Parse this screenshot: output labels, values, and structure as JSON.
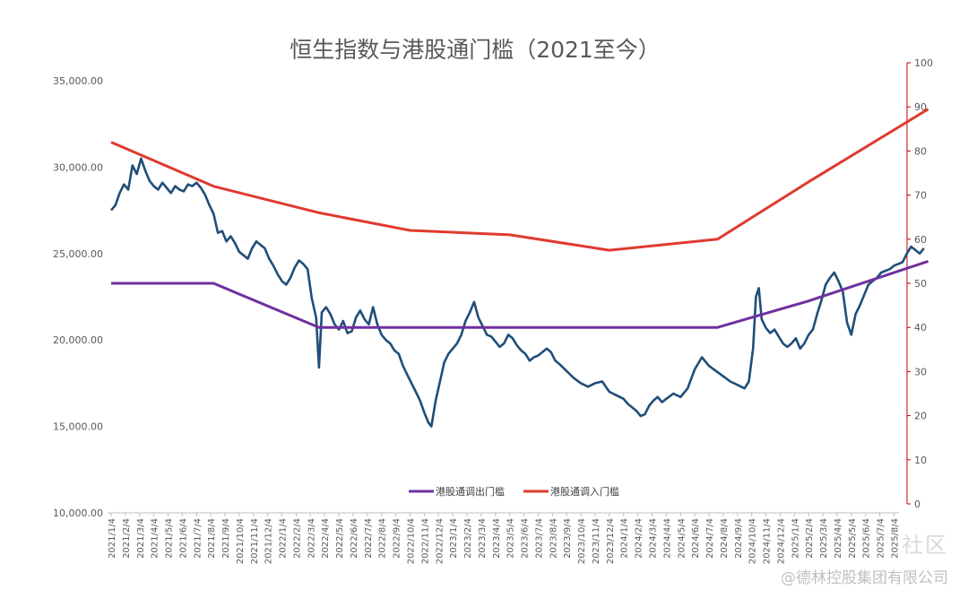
{
  "chart_data": {
    "type": "line",
    "title": "恒生指数与港股通门槛（2021至今）",
    "left_axis": {
      "ylim": [
        10000,
        35000
      ],
      "ticks": [
        "10,000.00",
        "15,000.00",
        "20,000.00",
        "25,000.00",
        "30,000.00",
        "35,000.00"
      ],
      "tick_values": [
        10000,
        15000,
        20000,
        25000,
        30000,
        35000
      ]
    },
    "right_axis": {
      "ylim": [
        0,
        100
      ],
      "ticks": [
        "0",
        "10",
        "20",
        "30",
        "40",
        "50",
        "60",
        "70",
        "80",
        "90",
        "100"
      ],
      "tick_values": [
        0,
        10,
        20,
        30,
        40,
        50,
        60,
        70,
        80,
        90,
        100
      ],
      "color": "#c00000"
    },
    "x_labels": [
      "2021/1/4",
      "2021/2/4",
      "2021/3/4",
      "2021/4/4",
      "2021/5/4",
      "2021/6/4",
      "2021/7/4",
      "2021/8/4",
      "2021/9/4",
      "2021/10/4",
      "2021/11/4",
      "2021/12/4",
      "2022/1/4",
      "2022/2/4",
      "2022/3/4",
      "2022/4/4",
      "2022/5/4",
      "2022/6/4",
      "2022/7/4",
      "2022/8/4",
      "2022/9/4",
      "2022/10/4",
      "2022/11/4",
      "2022/12/4",
      "2023/1/4",
      "2023/2/4",
      "2023/3/4",
      "2023/4/4",
      "2023/5/4",
      "2023/6/4",
      "2023/7/4",
      "2023/8/4",
      "2023/9/4",
      "2023/10/4",
      "2023/11/4",
      "2023/12/4",
      "2024/1/4",
      "2024/2/4",
      "2024/3/4",
      "2024/4/4",
      "2024/5/4",
      "2024/6/4",
      "2024/7/4",
      "2024/8/4",
      "2024/9/4",
      "2024/10/4",
      "2024/11/4",
      "2024/12/4",
      "2025/1/4",
      "2025/2/4",
      "2025/3/4",
      "2025/4/4",
      "2025/5/4",
      "2025/6/4",
      "2025/7/4",
      "2025/8/4"
    ],
    "series": [
      {
        "name": "恒生指数",
        "axis": "left",
        "color": "#1f4e79",
        "points": [
          [
            0,
            27500
          ],
          [
            0.3,
            27800
          ],
          [
            0.6,
            28500
          ],
          [
            0.9,
            29000
          ],
          [
            1.2,
            28700
          ],
          [
            1.5,
            30100
          ],
          [
            1.8,
            29600
          ],
          [
            2.1,
            30500
          ],
          [
            2.4,
            29800
          ],
          [
            2.7,
            29200
          ],
          [
            3.0,
            28900
          ],
          [
            3.3,
            28700
          ],
          [
            3.6,
            29100
          ],
          [
            3.9,
            28800
          ],
          [
            4.2,
            28500
          ],
          [
            4.5,
            28900
          ],
          [
            4.8,
            28700
          ],
          [
            5.1,
            28600
          ],
          [
            5.4,
            29000
          ],
          [
            5.7,
            28900
          ],
          [
            6.0,
            29100
          ],
          [
            6.3,
            28800
          ],
          [
            6.6,
            28400
          ],
          [
            6.9,
            27800
          ],
          [
            7.2,
            27300
          ],
          [
            7.5,
            26200
          ],
          [
            7.8,
            26300
          ],
          [
            8.1,
            25700
          ],
          [
            8.4,
            26000
          ],
          [
            8.7,
            25600
          ],
          [
            9.0,
            25100
          ],
          [
            9.3,
            24900
          ],
          [
            9.6,
            24700
          ],
          [
            9.9,
            25300
          ],
          [
            10.2,
            25700
          ],
          [
            10.5,
            25500
          ],
          [
            10.8,
            25300
          ],
          [
            11.1,
            24700
          ],
          [
            11.4,
            24300
          ],
          [
            11.7,
            23800
          ],
          [
            12.0,
            23400
          ],
          [
            12.3,
            23200
          ],
          [
            12.6,
            23600
          ],
          [
            12.9,
            24200
          ],
          [
            13.2,
            24600
          ],
          [
            13.5,
            24400
          ],
          [
            13.8,
            24100
          ],
          [
            14.1,
            22400
          ],
          [
            14.4,
            21300
          ],
          [
            14.6,
            18400
          ],
          [
            14.8,
            21600
          ],
          [
            15.1,
            21900
          ],
          [
            15.4,
            21500
          ],
          [
            15.7,
            20900
          ],
          [
            16.0,
            20600
          ],
          [
            16.3,
            21100
          ],
          [
            16.6,
            20400
          ],
          [
            16.9,
            20500
          ],
          [
            17.2,
            21300
          ],
          [
            17.5,
            21700
          ],
          [
            17.8,
            21200
          ],
          [
            18.1,
            20900
          ],
          [
            18.4,
            21900
          ],
          [
            18.7,
            20900
          ],
          [
            19.0,
            20300
          ],
          [
            19.3,
            20000
          ],
          [
            19.6,
            19800
          ],
          [
            19.9,
            19400
          ],
          [
            20.2,
            19200
          ],
          [
            20.5,
            18500
          ],
          [
            20.8,
            18000
          ],
          [
            21.1,
            17500
          ],
          [
            21.4,
            17000
          ],
          [
            21.7,
            16500
          ],
          [
            22.0,
            15800
          ],
          [
            22.3,
            15200
          ],
          [
            22.5,
            15000
          ],
          [
            22.8,
            16500
          ],
          [
            23.1,
            17600
          ],
          [
            23.4,
            18700
          ],
          [
            23.7,
            19200
          ],
          [
            24.0,
            19500
          ],
          [
            24.3,
            19800
          ],
          [
            24.6,
            20300
          ],
          [
            24.9,
            21100
          ],
          [
            25.2,
            21600
          ],
          [
            25.5,
            22200
          ],
          [
            25.8,
            21300
          ],
          [
            26.1,
            20800
          ],
          [
            26.4,
            20300
          ],
          [
            26.7,
            20200
          ],
          [
            27.0,
            19900
          ],
          [
            27.3,
            19600
          ],
          [
            27.6,
            19800
          ],
          [
            27.9,
            20300
          ],
          [
            28.2,
            20100
          ],
          [
            28.5,
            19700
          ],
          [
            28.8,
            19400
          ],
          [
            29.1,
            19200
          ],
          [
            29.4,
            18800
          ],
          [
            29.7,
            19000
          ],
          [
            30.0,
            19100
          ],
          [
            30.3,
            19300
          ],
          [
            30.6,
            19500
          ],
          [
            30.9,
            19300
          ],
          [
            31.2,
            18800
          ],
          [
            31.5,
            18600
          ],
          [
            32.0,
            18200
          ],
          [
            32.5,
            17800
          ],
          [
            33.0,
            17500
          ],
          [
            33.5,
            17300
          ],
          [
            34.0,
            17500
          ],
          [
            34.5,
            17600
          ],
          [
            35.0,
            17000
          ],
          [
            35.5,
            16800
          ],
          [
            36.0,
            16600
          ],
          [
            36.3,
            16300
          ],
          [
            36.6,
            16100
          ],
          [
            36.9,
            15900
          ],
          [
            37.2,
            15600
          ],
          [
            37.5,
            15700
          ],
          [
            37.8,
            16200
          ],
          [
            38.1,
            16500
          ],
          [
            38.4,
            16700
          ],
          [
            38.7,
            16400
          ],
          [
            39.0,
            16600
          ],
          [
            39.5,
            16900
          ],
          [
            40.0,
            16700
          ],
          [
            40.5,
            17200
          ],
          [
            41.0,
            18300
          ],
          [
            41.5,
            19000
          ],
          [
            42.0,
            18500
          ],
          [
            42.5,
            18200
          ],
          [
            43.0,
            17900
          ],
          [
            43.5,
            17600
          ],
          [
            44.0,
            17400
          ],
          [
            44.5,
            17200
          ],
          [
            44.8,
            17600
          ],
          [
            45.1,
            19500
          ],
          [
            45.3,
            22500
          ],
          [
            45.5,
            23000
          ],
          [
            45.7,
            21200
          ],
          [
            46.0,
            20700
          ],
          [
            46.3,
            20400
          ],
          [
            46.6,
            20600
          ],
          [
            46.9,
            20200
          ],
          [
            47.2,
            19800
          ],
          [
            47.5,
            19600
          ],
          [
            47.8,
            19800
          ],
          [
            48.1,
            20100
          ],
          [
            48.4,
            19500
          ],
          [
            48.7,
            19800
          ],
          [
            49.0,
            20300
          ],
          [
            49.3,
            20600
          ],
          [
            49.6,
            21500
          ],
          [
            49.9,
            22300
          ],
          [
            50.2,
            23200
          ],
          [
            50.5,
            23600
          ],
          [
            50.8,
            23900
          ],
          [
            51.1,
            23400
          ],
          [
            51.4,
            22800
          ],
          [
            51.7,
            21000
          ],
          [
            52.0,
            20300
          ],
          [
            52.3,
            21500
          ],
          [
            52.6,
            22000
          ],
          [
            52.9,
            22600
          ],
          [
            53.2,
            23200
          ],
          [
            53.5,
            23400
          ],
          [
            53.8,
            23600
          ],
          [
            54.1,
            23900
          ],
          [
            54.4,
            24000
          ],
          [
            54.7,
            24100
          ],
          [
            55.0,
            24300
          ],
          [
            55.3,
            24400
          ],
          [
            55.6,
            24500
          ],
          [
            55.9,
            25000
          ],
          [
            56.2,
            25400
          ],
          [
            56.5,
            25200
          ],
          [
            56.8,
            25000
          ],
          [
            57.1,
            25300
          ]
        ]
      },
      {
        "name": "港股通调出门槛",
        "axis": "right",
        "color": "#7030a0",
        "points": [
          [
            0,
            50
          ],
          [
            7.2,
            50
          ],
          [
            14.6,
            40
          ],
          [
            42.6,
            40
          ],
          [
            49.0,
            46
          ],
          [
            57.4,
            55
          ]
        ]
      },
      {
        "name": "港股通调入门槛",
        "axis": "right",
        "color": "#e03a2f",
        "points": [
          [
            0,
            82
          ],
          [
            7.2,
            72
          ],
          [
            14.6,
            66
          ],
          [
            21.0,
            62
          ],
          [
            28.0,
            61
          ],
          [
            35.0,
            57.5
          ],
          [
            42.6,
            60
          ],
          [
            49.0,
            73
          ],
          [
            57.4,
            89.5
          ]
        ]
      }
    ],
    "legend": [
      "港股通调出门槛",
      "港股通调入门槛"
    ],
    "legend_position": "bottom-center"
  },
  "watermark": "@德林控股集团有限公司",
  "watermark_overlay": "社区"
}
